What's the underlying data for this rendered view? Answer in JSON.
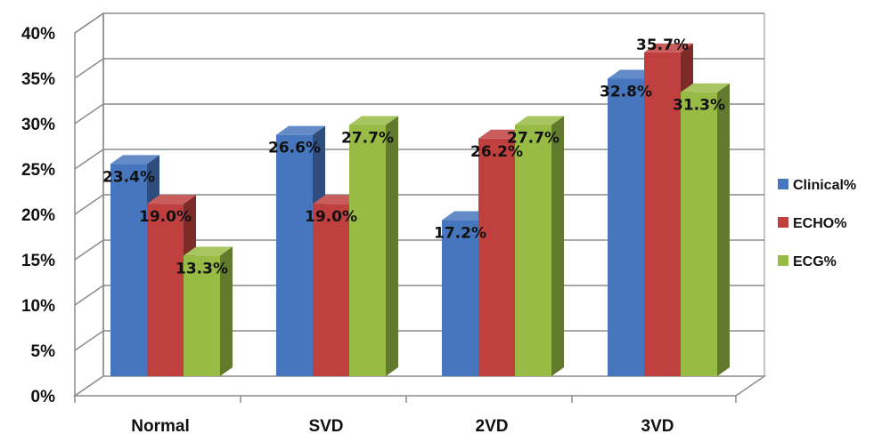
{
  "chart_data": {
    "type": "bar",
    "categories": [
      "Normal",
      "SVD",
      "2VD",
      "3VD"
    ],
    "series": [
      {
        "name": "Clinical%",
        "values": [
          23.4,
          26.6,
          17.2,
          32.8
        ],
        "labels": [
          "23.4%",
          "26.6%",
          "17.2%",
          "32.8%"
        ]
      },
      {
        "name": "ECHO%",
        "values": [
          19.0,
          19.0,
          26.2,
          35.7
        ],
        "labels": [
          "19.0%",
          "19.0%",
          "26.2%",
          "35.7%"
        ]
      },
      {
        "name": "ECG%",
        "values": [
          13.3,
          27.7,
          27.7,
          31.3
        ],
        "labels": [
          "13.3%",
          "27.7%",
          "27.7%",
          "31.3%"
        ]
      }
    ],
    "y_ticks": [
      "0%",
      "5%",
      "10%",
      "15%",
      "20%",
      "25%",
      "30%",
      "35%",
      "40%"
    ],
    "ylim": [
      0,
      40
    ],
    "grid": true,
    "legend_position": "right",
    "style": "3d-clustered-column"
  },
  "colors": {
    "Clinical%": "#4677be",
    "ECHO%": "#c0403f",
    "ECG%": "#97bb45"
  }
}
